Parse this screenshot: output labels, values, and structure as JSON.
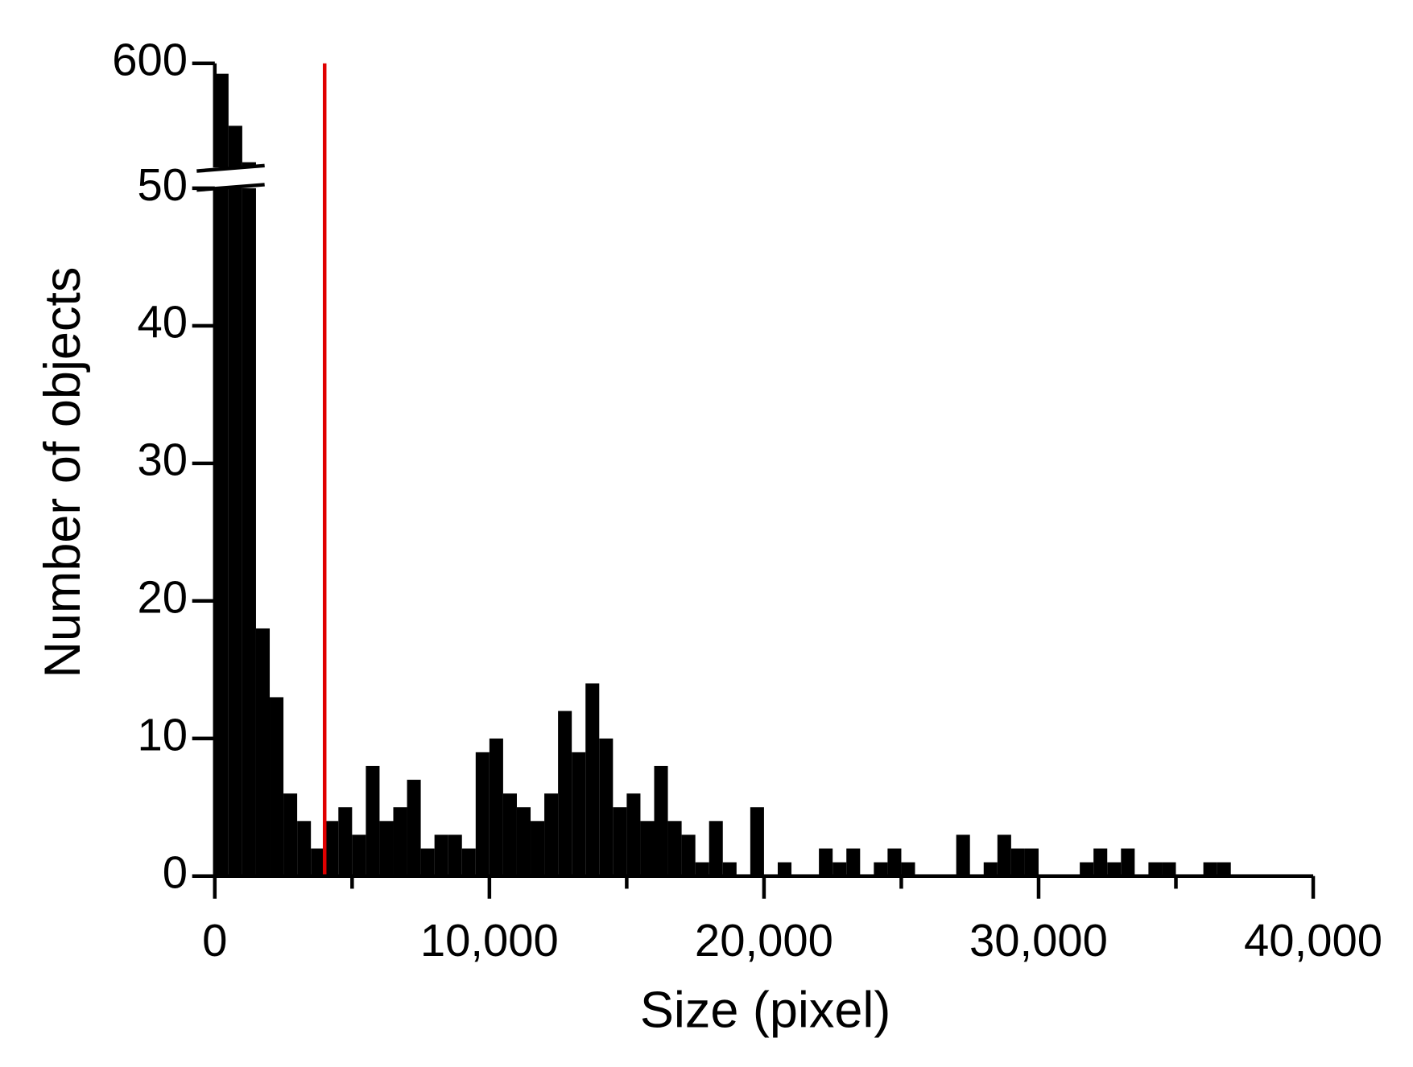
{
  "chart_data": {
    "type": "histogram",
    "xlabel": "Size (pixel)",
    "ylabel": "Number of objects",
    "bins": [
      0,
      500,
      1000,
      1500,
      2000,
      2500,
      3000,
      3500,
      4000,
      4500,
      5000,
      5500,
      6000,
      6500,
      7000,
      7500,
      8000,
      8500,
      9000,
      9500,
      10000,
      10500,
      11000,
      11500,
      12000,
      12500,
      13000,
      13500,
      14000,
      14500,
      15000,
      15500,
      16000,
      16500,
      17000,
      17500,
      18000,
      18500,
      19000,
      19500,
      20000,
      20500,
      21000,
      21500,
      22000,
      22500,
      23000,
      23500,
      24000,
      24500,
      25000,
      25500,
      26000,
      26500,
      27000,
      27500,
      28000,
      28500,
      29000,
      29500,
      30000,
      30500,
      31000,
      31500,
      32000,
      32500,
      33000,
      33500,
      34000,
      34500,
      35000,
      35500,
      36000,
      36500,
      37000
    ],
    "counts": [
      590,
      540,
      505,
      18,
      13,
      6,
      4,
      2,
      4,
      5,
      3,
      8,
      4,
      5,
      7,
      2,
      3,
      3,
      2,
      9,
      10,
      6,
      5,
      4,
      6,
      12,
      9,
      14,
      10,
      5,
      6,
      4,
      8,
      4,
      3,
      1,
      4,
      1,
      0,
      5,
      0,
      1,
      0,
      0,
      2,
      1,
      2,
      0,
      1,
      2,
      1,
      0,
      0,
      0,
      3,
      0,
      1,
      3,
      2,
      2,
      0,
      0,
      0,
      1,
      2,
      1,
      2,
      0,
      1,
      1,
      0,
      0,
      1,
      1
    ],
    "color": "#000000",
    "xlim": [
      0,
      40000
    ],
    "xticks": [
      0,
      {
        "value": 10000,
        "label": "10,000"
      },
      {
        "value": 20000,
        "label": "20,000"
      },
      {
        "value": 30000,
        "label": "30,000"
      },
      {
        "value": 40000,
        "label": "40,000"
      }
    ],
    "xminor_ticks": [
      5000,
      15000,
      25000,
      35000
    ],
    "ylim": [
      0,
      600
    ],
    "ybreak": [
      50,
      500
    ],
    "yticks": [
      0,
      10,
      20,
      30,
      40,
      50,
      600
    ],
    "threshold_line": {
      "x": 4000,
      "color": "#e00000"
    }
  }
}
